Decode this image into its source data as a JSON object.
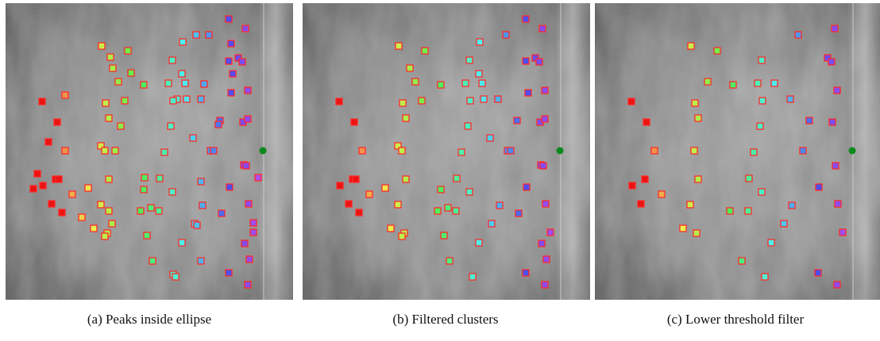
{
  "figure": {
    "panels": [
      {
        "caption": "(a) Peaks inside ellipse"
      },
      {
        "caption": "(b) Filtered clusters"
      },
      {
        "caption": "(c) Lower threshold filter"
      }
    ]
  }
}
